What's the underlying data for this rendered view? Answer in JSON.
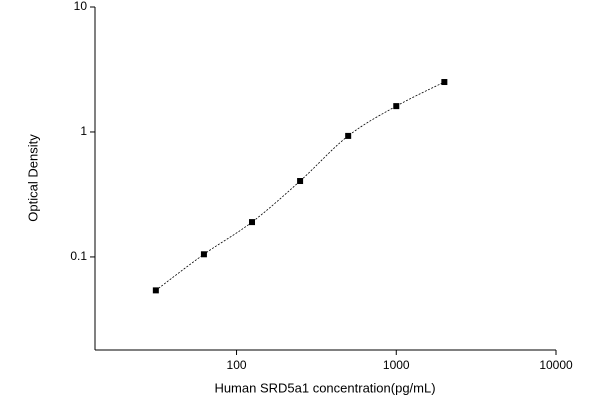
{
  "chart_data": {
    "type": "scatter",
    "x_label": "Human SRD5a1 concentration(pg/mL)",
    "y_label": "Optical Density",
    "x": [
      31.25,
      62.5,
      125,
      250,
      500,
      1000,
      2000
    ],
    "series": [
      {
        "color": "#000000",
        "values": [
          0.054,
          0.105,
          0.19,
          0.405,
          0.93,
          1.61,
          2.51
        ]
      }
    ],
    "xlim": [
      13,
      10000
    ],
    "ylim": [
      0.018,
      10
    ],
    "xticks": [
      100,
      1000,
      10000
    ],
    "yticks": [
      0.1,
      1,
      10
    ],
    "log_x": true,
    "log_y": true,
    "fit_line": true
  }
}
